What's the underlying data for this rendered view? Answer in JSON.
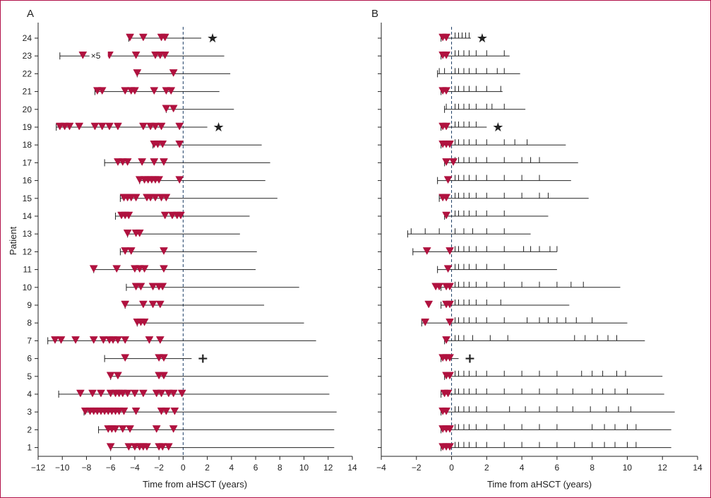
{
  "chart_data": [
    {
      "type": "timeline",
      "panel": "A",
      "xlabel": "Time from aHSCT (years)",
      "ylabel": "Patient",
      "xlim": [
        -12,
        14
      ],
      "xticks": [
        -12,
        -10,
        -8,
        -6,
        -4,
        -2,
        0,
        2,
        4,
        6,
        8,
        10,
        12,
        14
      ],
      "tick_labels": [
        "−12",
        "−10",
        "−8",
        "−6",
        "−4",
        "−2",
        "0",
        "2",
        "4",
        "6",
        "8",
        "10",
        "12",
        "14"
      ],
      "patients": [
        {
          "id": 1,
          "start": -6.0,
          "end": 12.5,
          "relapses": [
            -6.0,
            -4.5,
            -4.0,
            -3.6,
            -3.3,
            -3.0,
            -2.0,
            -1.7,
            -1.2
          ]
        },
        {
          "id": 2,
          "start": -7.0,
          "end": 12.5,
          "relapses": [
            -6.2,
            -5.9,
            -5.6,
            -5.0,
            -4.4,
            -2.2,
            -0.8
          ]
        },
        {
          "id": 3,
          "start": -8.2,
          "end": 12.7,
          "relapses": [
            -8.1,
            -7.7,
            -7.4,
            -7.1,
            -6.8,
            -6.5,
            -6.2,
            -5.9,
            -5.6,
            -5.3,
            -4.9,
            -3.9,
            -1.8,
            -1.4,
            -0.7
          ]
        },
        {
          "id": 4,
          "start": -10.3,
          "end": 12.1,
          "relapses": [
            -8.5,
            -7.5,
            -6.8,
            -6.0,
            -5.6,
            -5.3,
            -5.0,
            -4.6,
            -4.0,
            -3.3,
            -2.2,
            -1.8,
            -1.2,
            -0.8,
            -0.1
          ]
        },
        {
          "id": 5,
          "start": -6.0,
          "end": 12.0,
          "relapses": [
            -6.0,
            -5.4,
            -2.0,
            -1.6
          ]
        },
        {
          "id": 6,
          "start": -6.5,
          "end": 0.7,
          "relapses": [
            -4.8,
            -2.0,
            -1.6
          ],
          "outcome": "death"
        },
        {
          "id": 7,
          "start": -11.2,
          "end": 11.0,
          "relapses": [
            -10.6,
            -10.1,
            -8.9,
            -7.4,
            -6.6,
            -6.1,
            -5.8,
            -5.4,
            -4.8,
            -2.8,
            -1.9
          ]
        },
        {
          "id": 8,
          "start": -3.8,
          "end": 10.0,
          "relapses": [
            -3.8,
            -3.5,
            -3.2
          ]
        },
        {
          "id": 9,
          "start": -4.8,
          "end": 6.7,
          "relapses": [
            -4.8,
            -3.3,
            -2.5,
            -1.9
          ]
        },
        {
          "id": 10,
          "start": -4.7,
          "end": 9.6,
          "relapses": [
            -3.9,
            -3.5,
            -2.5,
            -2.0,
            -1.7
          ]
        },
        {
          "id": 11,
          "start": -7.4,
          "end": 6.0,
          "relapses": [
            -7.4,
            -5.5,
            -4.0,
            -3.6,
            -3.2,
            -1.6
          ]
        },
        {
          "id": 12,
          "start": -5.2,
          "end": 6.1,
          "relapses": [
            -4.8,
            -4.3,
            -1.6
          ]
        },
        {
          "id": 13,
          "start": -4.6,
          "end": 4.7,
          "relapses": [
            -4.6,
            -3.9,
            -3.6
          ]
        },
        {
          "id": 14,
          "start": -5.6,
          "end": 5.5,
          "relapses": [
            -5.1,
            -4.8,
            -4.5,
            -1.5,
            -0.9,
            -0.5,
            -0.2
          ]
        },
        {
          "id": 15,
          "start": -5.2,
          "end": 7.8,
          "relapses": [
            -4.9,
            -4.6,
            -4.3,
            -3.9,
            -3.0,
            -2.7,
            -2.3,
            -1.8,
            -1.4
          ]
        },
        {
          "id": 16,
          "start": -3.6,
          "end": 6.8,
          "relapses": [
            -3.6,
            -3.2,
            -2.9,
            -2.6,
            -2.3,
            -2.0,
            -0.3
          ]
        },
        {
          "id": 17,
          "start": -6.5,
          "end": 7.2,
          "relapses": [
            -5.4,
            -5.0,
            -4.6,
            -3.4,
            -2.4,
            -1.6
          ]
        },
        {
          "id": 18,
          "start": -2.5,
          "end": 6.5,
          "relapses": [
            -2.4,
            -2.1,
            -1.7,
            -0.3
          ]
        },
        {
          "id": 19,
          "start": -10.5,
          "end": 2.0,
          "relapses": [
            -10.2,
            -9.8,
            -9.4,
            -8.6,
            -7.3,
            -6.7,
            -6.1,
            -5.4,
            -3.3,
            -2.7,
            -2.3,
            -1.8,
            -0.3
          ],
          "outcome": "death"
        },
        {
          "id": 20,
          "start": -1.4,
          "end": 4.2,
          "relapses": [
            -1.4,
            -0.8
          ]
        },
        {
          "id": 21,
          "start": -7.3,
          "end": 3.0,
          "relapses": [
            -7.1,
            -6.7,
            -4.8,
            -4.3,
            -4.0,
            -2.4,
            -1.4,
            -1.0
          ]
        },
        {
          "id": 22,
          "start": -3.8,
          "end": 3.9,
          "relapses": [
            -3.8,
            -0.8
          ]
        },
        {
          "id": 23,
          "start": -10.2,
          "end": 3.4,
          "relapses": [
            -8.3,
            -6.1,
            -3.9,
            -2.3,
            -1.9,
            -1.5
          ],
          "note": "×5"
        },
        {
          "id": 24,
          "start": -4.5,
          "end": 1.5,
          "relapses": [
            -4.4,
            -3.3,
            -1.8,
            -1.5
          ],
          "outcome": "death"
        }
      ]
    },
    {
      "type": "timeline",
      "panel": "B",
      "xlabel": "Time from aHSCT (years)",
      "xlim": [
        -4,
        14
      ],
      "xticks": [
        -4,
        -2,
        0,
        2,
        4,
        6,
        8,
        10,
        12,
        14
      ],
      "tick_labels": [
        "−4",
        "−2",
        "0",
        "2",
        "4",
        "6",
        "8",
        "10",
        "12",
        "14"
      ],
      "patients": [
        {
          "id": 1,
          "start": -0.6,
          "end": 12.5,
          "relapses": [
            -0.5,
            -0.3,
            -0.1
          ],
          "scans": [
            0.2,
            0.4,
            0.7,
            1.0,
            1.4,
            2.0,
            3.0,
            4.0,
            5.0,
            6.0,
            7.0,
            8.0,
            8.7,
            9.3,
            10.0,
            10.5
          ]
        },
        {
          "id": 2,
          "start": -0.6,
          "end": 12.5,
          "relapses": [
            -0.5,
            -0.3,
            -0.1
          ],
          "scans": [
            0.2,
            0.4,
            0.7,
            1.0,
            1.4,
            2.0,
            3.0,
            4.0,
            5.0,
            6.0,
            8.0,
            8.7,
            9.3,
            10.0,
            10.5
          ]
        },
        {
          "id": 3,
          "start": -0.6,
          "end": 12.7,
          "relapses": [
            -0.5,
            -0.3
          ],
          "scans": [
            0.2,
            0.4,
            0.7,
            1.0,
            1.4,
            2.0,
            3.3,
            4.2,
            5.0,
            6.0,
            6.9,
            7.9,
            8.8,
            9.5,
            10.2
          ]
        },
        {
          "id": 4,
          "start": -0.6,
          "end": 12.1,
          "relapses": [
            -0.4,
            -0.2
          ],
          "scans": [
            0.2,
            0.4,
            0.7,
            1.0,
            1.4,
            2.0,
            3.0,
            4.0,
            5.0,
            6.0,
            6.9,
            8.0,
            8.6,
            9.3,
            10.0
          ]
        },
        {
          "id": 5,
          "start": -0.4,
          "end": 12.0,
          "relapses": [
            -0.3,
            -0.1
          ],
          "scans": [
            0.2,
            0.4,
            0.7,
            1.0,
            1.4,
            2.0,
            3.0,
            4.0,
            5.0,
            6.0,
            7.4,
            8.0,
            8.6,
            9.4,
            9.9
          ]
        },
        {
          "id": 6,
          "start": -0.6,
          "end": 0.4,
          "relapses": [
            -0.5,
            -0.3,
            -0.1
          ],
          "scans": [],
          "outcome": "death"
        },
        {
          "id": 7,
          "start": -0.4,
          "end": 11.0,
          "relapses": [
            -0.3
          ],
          "scans": [
            0.2,
            0.4,
            0.7,
            1.2,
            2.2,
            3.2,
            7.0,
            7.6,
            8.3,
            8.9,
            9.4
          ]
        },
        {
          "id": 8,
          "start": -1.7,
          "end": 10.0,
          "relapses": [
            -1.5,
            -0.1
          ],
          "scans": [
            0.2,
            0.4,
            0.7,
            1.0,
            1.4,
            2.0,
            3.0,
            4.3,
            5.0,
            5.5,
            6.0,
            6.5,
            7.1,
            8.0
          ]
        },
        {
          "id": 9,
          "start": -0.6,
          "end": 6.7,
          "relapses": [
            -1.3,
            -0.3,
            -0.1
          ],
          "scans": [
            0.2,
            0.4,
            0.7,
            1.0,
            1.4,
            2.0,
            2.8
          ]
        },
        {
          "id": 10,
          "start": -0.6,
          "end": 9.6,
          "relapses": [
            -0.9,
            -0.7,
            -0.3,
            -0.1
          ],
          "scans": [
            0.2,
            0.4,
            0.7,
            1.0,
            1.4,
            2.0,
            3.0,
            4.0,
            5.0,
            6.0,
            6.8,
            7.5
          ]
        },
        {
          "id": 11,
          "start": -0.8,
          "end": 6.0,
          "relapses": [
            -0.2
          ],
          "scans": [
            0.2,
            0.4,
            0.7,
            1.0,
            1.4,
            2.0,
            3.0
          ]
        },
        {
          "id": 12,
          "start": -2.2,
          "end": 6.0,
          "relapses": [
            -1.4,
            -0.1
          ],
          "scans": [
            0.2,
            0.4,
            0.7,
            1.0,
            1.4,
            2.0,
            3.0,
            4.1,
            4.5,
            5.0,
            5.6,
            6.0
          ]
        },
        {
          "id": 13,
          "start": -2.5,
          "end": 4.5,
          "relapses": [],
          "scans": [
            -2.3,
            -1.5,
            -0.7,
            0.2,
            0.7,
            1.2,
            2.0,
            3.0
          ]
        },
        {
          "id": 14,
          "start": -0.4,
          "end": 5.5,
          "relapses": [
            -0.3
          ],
          "scans": [
            0.2,
            0.4,
            0.7,
            1.0,
            1.4,
            2.0,
            3.0
          ]
        },
        {
          "id": 15,
          "start": -0.7,
          "end": 7.8,
          "relapses": [
            -0.5,
            -0.3
          ],
          "scans": [
            0.2,
            0.4,
            0.7,
            1.0,
            1.4,
            2.0,
            3.0,
            4.0,
            5.0,
            5.5
          ]
        },
        {
          "id": 16,
          "start": -0.8,
          "end": 6.8,
          "relapses": [
            -0.2
          ],
          "scans": [
            0.2,
            0.4,
            0.7,
            1.0,
            1.4,
            2.0,
            3.0,
            4.0,
            5.0
          ]
        },
        {
          "id": 17,
          "start": -0.4,
          "end": 7.2,
          "relapses": [
            -0.3,
            0.1
          ],
          "scans": [
            0.2,
            0.4,
            0.7,
            1.0,
            1.4,
            2.0,
            3.0,
            4.0,
            4.5,
            5.0
          ]
        },
        {
          "id": 18,
          "start": -0.6,
          "end": 6.5,
          "relapses": [
            -0.5,
            -0.3,
            -0.1
          ],
          "scans": [
            0.2,
            0.4,
            0.7,
            1.0,
            1.4,
            2.0,
            3.0,
            3.6,
            4.3
          ]
        },
        {
          "id": 19,
          "start": -0.6,
          "end": 2.0,
          "relapses": [
            -0.5,
            -0.3
          ],
          "scans": [
            0.2,
            0.4,
            0.7,
            1.0,
            1.4
          ],
          "outcome": "death"
        },
        {
          "id": 20,
          "start": -0.4,
          "end": 4.2,
          "relapses": [],
          "scans": [
            -0.3,
            0.2,
            0.4,
            0.7,
            1.0,
            1.4,
            2.0,
            2.3,
            3.0
          ]
        },
        {
          "id": 21,
          "start": -0.6,
          "end": 2.9,
          "relapses": [
            -0.5,
            -0.3
          ],
          "scans": [
            0.2,
            0.4,
            0.7,
            1.0,
            1.4,
            2.0,
            2.8
          ]
        },
        {
          "id": 22,
          "start": -0.8,
          "end": 3.9,
          "relapses": [],
          "scans": [
            -0.7,
            -0.4,
            0.2,
            0.4,
            0.7,
            1.0,
            1.4,
            2.0,
            2.6,
            3.0
          ]
        },
        {
          "id": 23,
          "start": -0.6,
          "end": 3.3,
          "relapses": [
            -0.5,
            -0.3
          ],
          "scans": [
            0.2,
            0.4,
            0.7,
            1.0,
            1.4,
            2.0,
            3.0
          ]
        },
        {
          "id": 24,
          "start": -0.6,
          "end": 1.1,
          "relapses": [
            -0.5,
            -0.3
          ],
          "scans": [
            0.2,
            0.4,
            0.6,
            0.8,
            1.0
          ],
          "outcome": "death"
        }
      ]
    }
  ],
  "colors": {
    "marker": "#b0123f",
    "line": "#222222",
    "frame": "#b1124a",
    "zero": "#1e3f66"
  },
  "markers": {
    "death_dark": "★",
    "death_other": "+"
  }
}
